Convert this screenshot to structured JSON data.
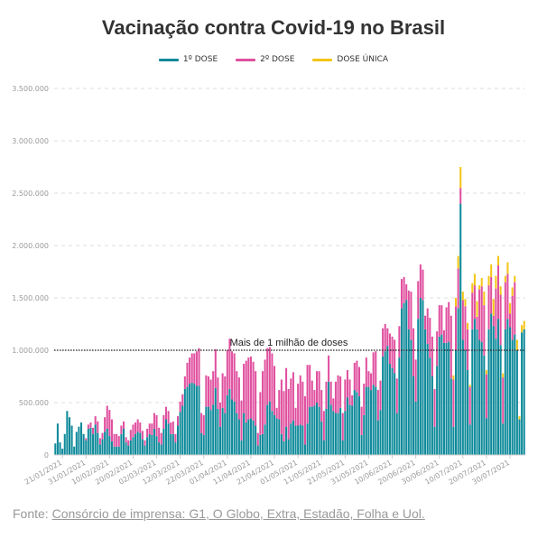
{
  "colors": {
    "primeira": "#0e8a9a",
    "segunda": "#e0509f",
    "unica": "#f5c518",
    "grid": "#dddddd",
    "text": "#333333",
    "tick": "#999999"
  },
  "chart_data": {
    "type": "bar",
    "stacked": true,
    "title": "Vacinação contra Covid-19 no Brasil",
    "xlabel": "",
    "ylabel": "",
    "ylim": [
      0,
      3500000
    ],
    "yticks": [
      0,
      500000,
      1000000,
      1500000,
      2000000,
      2500000,
      3000000,
      3500000
    ],
    "ytick_labels": [
      "0",
      "500.000",
      "1.000.000",
      "1.500.000",
      "2.000.000",
      "2.500.000",
      "3.000.000",
      "3.500.000"
    ],
    "grid": true,
    "legend_position": "top-center",
    "date_start": "2021-01-18",
    "x_tick_labels": [
      "21/01/2021",
      "31/01/2021",
      "10/02/2021",
      "20/02/2021",
      "02/03/2021",
      "12/03/2021",
      "22/03/2021",
      "01/04/2021",
      "11/04/2021",
      "21/04/2021",
      "01/05/2021",
      "11/05/2021",
      "21/05/2021",
      "31/05/2021",
      "10/06/2021",
      "20/06/2021",
      "30/06/2021",
      "10/07/2021",
      "20/07/2021",
      "30/07/2021"
    ],
    "annotation": {
      "label": "Mais de 1 milhão de doses",
      "y": 1000000
    },
    "series": [
      {
        "name": "1º DOSE",
        "values": [
          110000,
          300000,
          120000,
          60000,
          200000,
          420000,
          360000,
          280000,
          80000,
          220000,
          270000,
          310000,
          200000,
          140000,
          250000,
          260000,
          200000,
          290000,
          210000,
          100000,
          150000,
          220000,
          250000,
          180000,
          130000,
          80000,
          80000,
          80000,
          200000,
          250000,
          120000,
          90000,
          140000,
          170000,
          200000,
          220000,
          210000,
          150000,
          90000,
          170000,
          200000,
          190000,
          250000,
          180000,
          120000,
          100000,
          250000,
          340000,
          300000,
          200000,
          200000,
          120000,
          280000,
          410000,
          470000,
          630000,
          650000,
          680000,
          690000,
          680000,
          660000,
          660000,
          210000,
          190000,
          460000,
          460000,
          430000,
          480000,
          640000,
          440000,
          270000,
          450000,
          400000,
          570000,
          630000,
          530000,
          510000,
          400000,
          340000,
          140000,
          400000,
          310000,
          340000,
          350000,
          330000,
          280000,
          90000,
          190000,
          200000,
          290000,
          480000,
          510000,
          420000,
          380000,
          350000,
          340000,
          200000,
          130000,
          270000,
          150000,
          300000,
          330000,
          280000,
          280000,
          290000,
          280000,
          100000,
          300000,
          460000,
          460000,
          470000,
          500000,
          460000,
          320000,
          140000,
          440000,
          700000,
          480000,
          420000,
          400000,
          400000,
          450000,
          140000,
          420000,
          550000,
          480000,
          470000,
          620000,
          600000,
          560000,
          190000,
          380000,
          650000,
          650000,
          620000,
          670000,
          650000,
          330000,
          430000,
          940000,
          990000,
          1040000,
          870000,
          830000,
          780000,
          400000,
          930000,
          1400000,
          1450000,
          1480000,
          1200000,
          1100000,
          750000,
          510000,
          1300000,
          1500000,
          1480000,
          1200000,
          1060000,
          930000,
          750000,
          270000,
          850000,
          1130000,
          1150000,
          1070000,
          1070000,
          1080000,
          730000,
          270000,
          1000000,
          1400000,
          2400000,
          1100000,
          1000000,
          810000,
          290000,
          1200000,
          1300000,
          1200000,
          1100000,
          1080000,
          950000,
          350000,
          1200000,
          1350000,
          1230000,
          1110000,
          1300000,
          1050000,
          300000,
          1200000,
          1300000,
          1220000,
          1100000,
          1150000,
          1000000,
          340000,
          1170000,
          1200000
        ],
        "note": ""
      },
      {
        "name": "2º DOSE",
        "values": [
          0,
          0,
          0,
          0,
          0,
          0,
          0,
          0,
          0,
          0,
          0,
          0,
          0,
          20000,
          40000,
          50000,
          60000,
          80000,
          110000,
          60000,
          60000,
          140000,
          220000,
          250000,
          210000,
          120000,
          120000,
          100000,
          80000,
          70000,
          50000,
          50000,
          100000,
          120000,
          110000,
          120000,
          100000,
          80000,
          50000,
          80000,
          100000,
          110000,
          150000,
          200000,
          140000,
          110000,
          130000,
          120000,
          120000,
          110000,
          120000,
          80000,
          90000,
          100000,
          110000,
          120000,
          230000,
          250000,
          280000,
          290000,
          330000,
          360000,
          190000,
          190000,
          300000,
          290000,
          290000,
          320000,
          370000,
          300000,
          230000,
          330000,
          350000,
          430000,
          480000,
          460000,
          460000,
          400000,
          400000,
          380000,
          470000,
          590000,
          590000,
          590000,
          560000,
          520000,
          120000,
          410000,
          600000,
          620000,
          540000,
          520000,
          550000,
          470000,
          100000,
          280000,
          520000,
          480000,
          560000,
          480000,
          430000,
          460000,
          170000,
          400000,
          470000,
          420000,
          460000,
          560000,
          400000,
          250000,
          150000,
          300000,
          340000,
          300000,
          280000,
          260000,
          250000,
          220000,
          120000,
          300000,
          360000,
          300000,
          260000,
          300000,
          260000,
          240000,
          100000,
          260000,
          300000,
          280000,
          270000,
          300000,
          280000,
          150000,
          160000,
          310000,
          340000,
          290000,
          280000,
          270000,
          260000,
          170000,
          290000,
          300000,
          320000,
          330000,
          300000,
          280000,
          250000,
          150000,
          370000,
          460000,
          460000,
          400000,
          360000,
          320000,
          290000,
          130000,
          340000,
          380000,
          380000,
          360000,
          330000,
          300000,
          280000,
          120000,
          340000,
          380000,
          600000,
          450000,
          420000,
          380000,
          150000,
          380000,
          420000,
          390000,
          360000,
          350000,
          320000,
          120000,
          480000,
          530000,
          480000,
          420000,
          420000,
          350000,
          100000,
          480000,
          510000,
          480000,
          440000,
          450000,
          430000,
          130000,
          420000,
          500000
        ],
        "note": ""
      },
      {
        "name": "DOSE ÚNICA",
        "values": [
          0,
          0,
          0,
          0,
          0,
          0,
          0,
          0,
          0,
          0,
          0,
          0,
          0,
          0,
          0,
          0,
          0,
          0,
          0,
          0,
          0,
          0,
          0,
          0,
          0,
          0,
          0,
          0,
          0,
          0,
          0,
          0,
          0,
          0,
          0,
          0,
          0,
          0,
          0,
          0,
          0,
          0,
          0,
          0,
          0,
          0,
          0,
          0,
          0,
          0,
          0,
          0,
          0,
          0,
          0,
          0,
          0,
          0,
          0,
          0,
          0,
          0,
          0,
          0,
          0,
          0,
          0,
          0,
          0,
          0,
          0,
          0,
          0,
          0,
          0,
          0,
          0,
          0,
          0,
          0,
          0,
          0,
          0,
          0,
          0,
          0,
          0,
          0,
          0,
          0,
          0,
          0,
          0,
          0,
          0,
          0,
          0,
          0,
          0,
          0,
          0,
          0,
          0,
          0,
          0,
          0,
          0,
          0,
          0,
          0,
          0,
          0,
          0,
          0,
          0,
          0,
          0,
          0,
          0,
          0,
          0,
          0,
          0,
          0,
          0,
          0,
          0,
          0,
          0,
          0,
          0,
          0,
          0,
          0,
          0,
          0,
          0,
          0,
          0,
          0,
          0,
          0,
          0,
          0,
          0,
          0,
          0,
          0,
          0,
          0,
          0,
          0,
          0,
          0,
          0,
          0,
          0,
          0,
          0,
          0,
          0,
          0,
          0,
          0,
          0,
          0,
          0,
          0,
          0,
          40000,
          80000,
          120000,
          200000,
          80000,
          70000,
          60000,
          20000,
          90000,
          110000,
          150000,
          40000,
          80000,
          130000,
          40000,
          90000,
          120000,
          160000,
          120000,
          90000,
          80000,
          40000,
          60000,
          110000,
          100000,
          80000,
          60000,
          100000,
          30000,
          70000,
          80000,
          80000,
          60000,
          40000,
          60000,
          20000,
          30000,
          40000
        ],
        "note": ""
      }
    ]
  },
  "source": {
    "prefix": "Fonte: ",
    "link": "Consórcio de imprensa: G1, O Globo, Extra, Estadão, Folha e Uol."
  }
}
